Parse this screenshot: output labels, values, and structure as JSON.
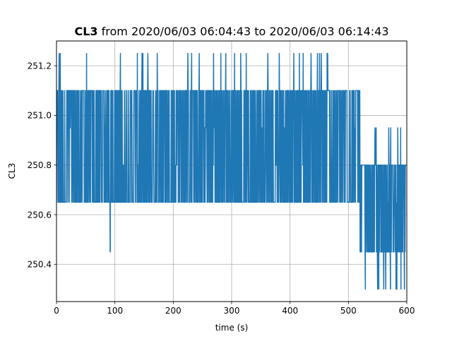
{
  "chart_data": {
    "type": "line",
    "title_bold": "CL3",
    "title_rest": " from 2020/06/03 06:04:43 to 2020/06/03 06:14:43",
    "xlabel": "time (s)",
    "ylabel": "CL3",
    "xlim": [
      0,
      600
    ],
    "ylim": [
      250.25,
      251.3
    ],
    "xticks": [
      0,
      100,
      200,
      300,
      400,
      500,
      600
    ],
    "yticks": [
      250.4,
      250.6,
      250.8,
      251.0,
      251.2
    ],
    "ytick_labels": [
      "250.4",
      "250.6",
      "250.8",
      "251.0",
      "251.2"
    ],
    "grid": true,
    "color": "#1f77b4",
    "series": [
      {
        "regimes": [
          {
            "x_range": [
              0,
              470
            ],
            "levels": [
              250.65,
              250.8,
              250.95,
              251.1,
              251.25
            ],
            "typical": [
              250.65,
              251.1
            ]
          },
          {
            "x_range": [
              470,
              520
            ],
            "levels": [
              250.65,
              250.8,
              250.95,
              251.1
            ],
            "typical": [
              250.65,
              251.1
            ]
          },
          {
            "x_range": [
              520,
              600
            ],
            "levels": [
              250.3,
              250.45,
              250.65,
              250.8,
              250.95
            ],
            "typical": [
              250.45,
              250.8
            ]
          }
        ],
        "outliers": [
          {
            "x": 92,
            "y": 250.45
          },
          {
            "x": 529,
            "y": 250.3
          },
          {
            "x": 552,
            "y": 250.3
          },
          {
            "x": 564,
            "y": 250.3
          },
          {
            "x": 572,
            "y": 250.3
          },
          {
            "x": 582,
            "y": 250.3
          },
          {
            "x": 590,
            "y": 250.3
          },
          {
            "x": 596,
            "y": 250.3
          }
        ]
      }
    ]
  }
}
